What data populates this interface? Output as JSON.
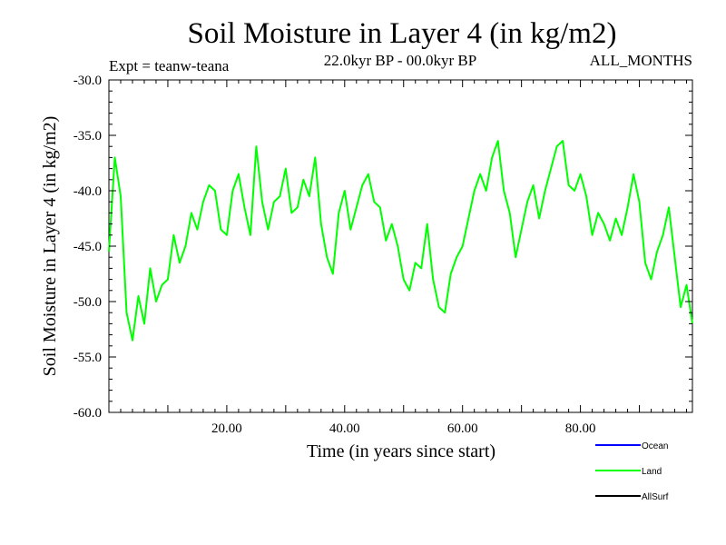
{
  "chart_data": {
    "type": "line",
    "title": "Soil Moisture in Layer 4 (in kg/m2)",
    "expt_label": "Expt = teanw-teana",
    "period_label": "22.0kyr BP - 00.0kyr BP",
    "months_label": "ALL_MONTHS",
    "xlabel": "Time (in years since start)",
    "ylabel": "Soil Moisture in Layer 4 (in kg/m2)",
    "xlim": [
      0,
      99
    ],
    "ylim": [
      -60,
      -30
    ],
    "x_ticks": [
      20,
      40,
      60,
      80
    ],
    "x_tick_labels": [
      "20.00",
      "40.00",
      "60.00",
      "80.00"
    ],
    "y_ticks": [
      -30,
      -35,
      -40,
      -45,
      -50,
      -55,
      -60
    ],
    "y_tick_labels": [
      "-30.0",
      "-35.0",
      "-40.0",
      "-45.0",
      "-50.0",
      "-55.0",
      "-60.0"
    ],
    "legend": [
      {
        "name": "Ocean",
        "color": "#0000ff"
      },
      {
        "name": "Land",
        "color": "#00ff00"
      },
      {
        "name": "AllSurf",
        "color": "#000000"
      }
    ],
    "series": [
      {
        "name": "Land",
        "color": "#00ff00",
        "x": [
          0,
          1,
          2,
          3,
          4,
          5,
          6,
          7,
          8,
          9,
          10,
          11,
          12,
          13,
          14,
          15,
          16,
          17,
          18,
          19,
          20,
          21,
          22,
          23,
          24,
          25,
          26,
          27,
          28,
          29,
          30,
          31,
          32,
          33,
          34,
          35,
          36,
          37,
          38,
          39,
          40,
          41,
          42,
          43,
          44,
          45,
          46,
          47,
          48,
          49,
          50,
          51,
          52,
          53,
          54,
          55,
          56,
          57,
          58,
          59,
          60,
          61,
          62,
          63,
          64,
          65,
          66,
          67,
          68,
          69,
          70,
          71,
          72,
          73,
          74,
          75,
          76,
          77,
          78,
          79,
          80,
          81,
          82,
          83,
          84,
          85,
          86,
          87,
          88,
          89,
          90,
          91,
          92,
          93,
          94,
          95,
          96,
          97,
          98,
          99
        ],
        "values": [
          -45.5,
          -37.0,
          -40.5,
          -51.0,
          -53.5,
          -49.5,
          -52.0,
          -47.0,
          -50.0,
          -48.5,
          -48.0,
          -44.0,
          -46.5,
          -45.0,
          -42.0,
          -43.5,
          -41.0,
          -39.5,
          -40.0,
          -43.5,
          -44.0,
          -40.0,
          -38.5,
          -41.5,
          -44.0,
          -36.0,
          -41.0,
          -43.5,
          -41.0,
          -40.5,
          -38.0,
          -42.0,
          -41.5,
          -39.0,
          -40.5,
          -37.0,
          -43.0,
          -46.0,
          -47.5,
          -42.0,
          -40.0,
          -43.5,
          -41.5,
          -39.5,
          -38.5,
          -41.0,
          -41.5,
          -44.5,
          -43.0,
          -45.0,
          -48.0,
          -49.0,
          -46.5,
          -47.0,
          -43.0,
          -48.0,
          -50.5,
          -51.0,
          -47.5,
          -46.0,
          -45.0,
          -42.5,
          -40.0,
          -38.5,
          -40.0,
          -37.0,
          -35.5,
          -40.0,
          -42.0,
          -46.0,
          -43.5,
          -41.0,
          -39.5,
          -42.5,
          -40.0,
          -38.0,
          -36.0,
          -35.5,
          -39.5,
          -40.0,
          -38.5,
          -40.5,
          -44.0,
          -42.0,
          -43.0,
          -44.5,
          -42.5,
          -44.0,
          -41.5,
          -38.5,
          -41.0,
          -46.5,
          -48.0,
          -45.5,
          -44.0,
          -41.5,
          -46.0,
          -50.5,
          -48.5,
          -52.0
        ]
      }
    ]
  }
}
